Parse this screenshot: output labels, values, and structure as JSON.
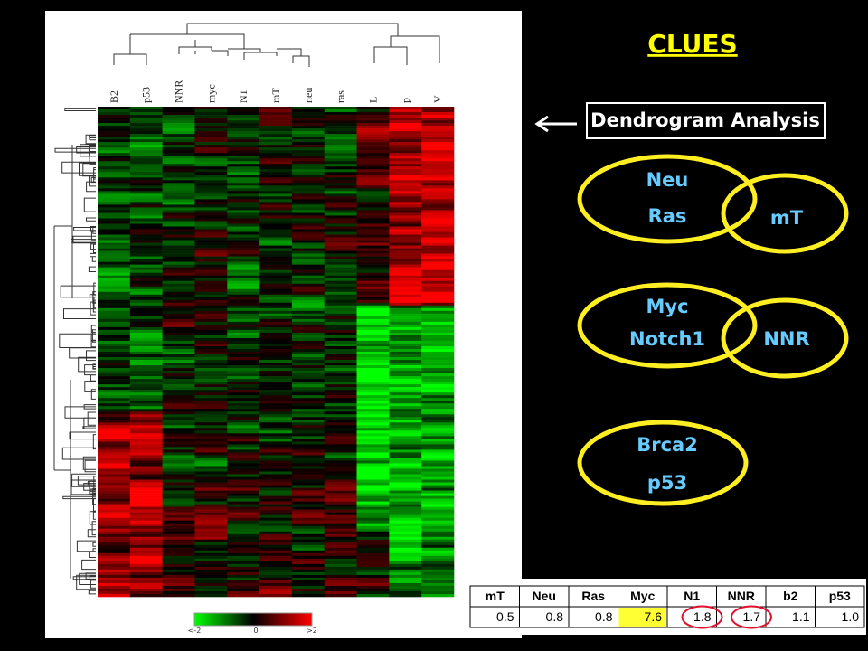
{
  "title": "CLUES",
  "arrow_box": "Dendrogram Analysis",
  "groups": [
    {
      "labels": [
        "Neu",
        "Ras"
      ],
      "overlap": "mT"
    },
    {
      "labels": [
        "Myc",
        "Notch1"
      ],
      "overlap": "NNR"
    },
    {
      "labels": [
        "Brca2",
        "p53"
      ]
    }
  ],
  "heatmap": {
    "columns": [
      "B2",
      "p53",
      "NNR",
      "myc",
      "N1",
      "mT",
      "neu",
      "ras",
      "L",
      "p",
      "V"
    ],
    "legend": [
      "<-2",
      "0",
      ">2"
    ]
  },
  "table": {
    "header": [
      "mT",
      "Neu",
      "Ras",
      "Myc",
      "N1",
      "NNR",
      "b2",
      "p53"
    ],
    "rows": [
      [
        "0.5",
        "0.8",
        "0.8",
        "7.6",
        "1.8",
        "1.7",
        "1.1",
        "1.0"
      ]
    ]
  }
}
